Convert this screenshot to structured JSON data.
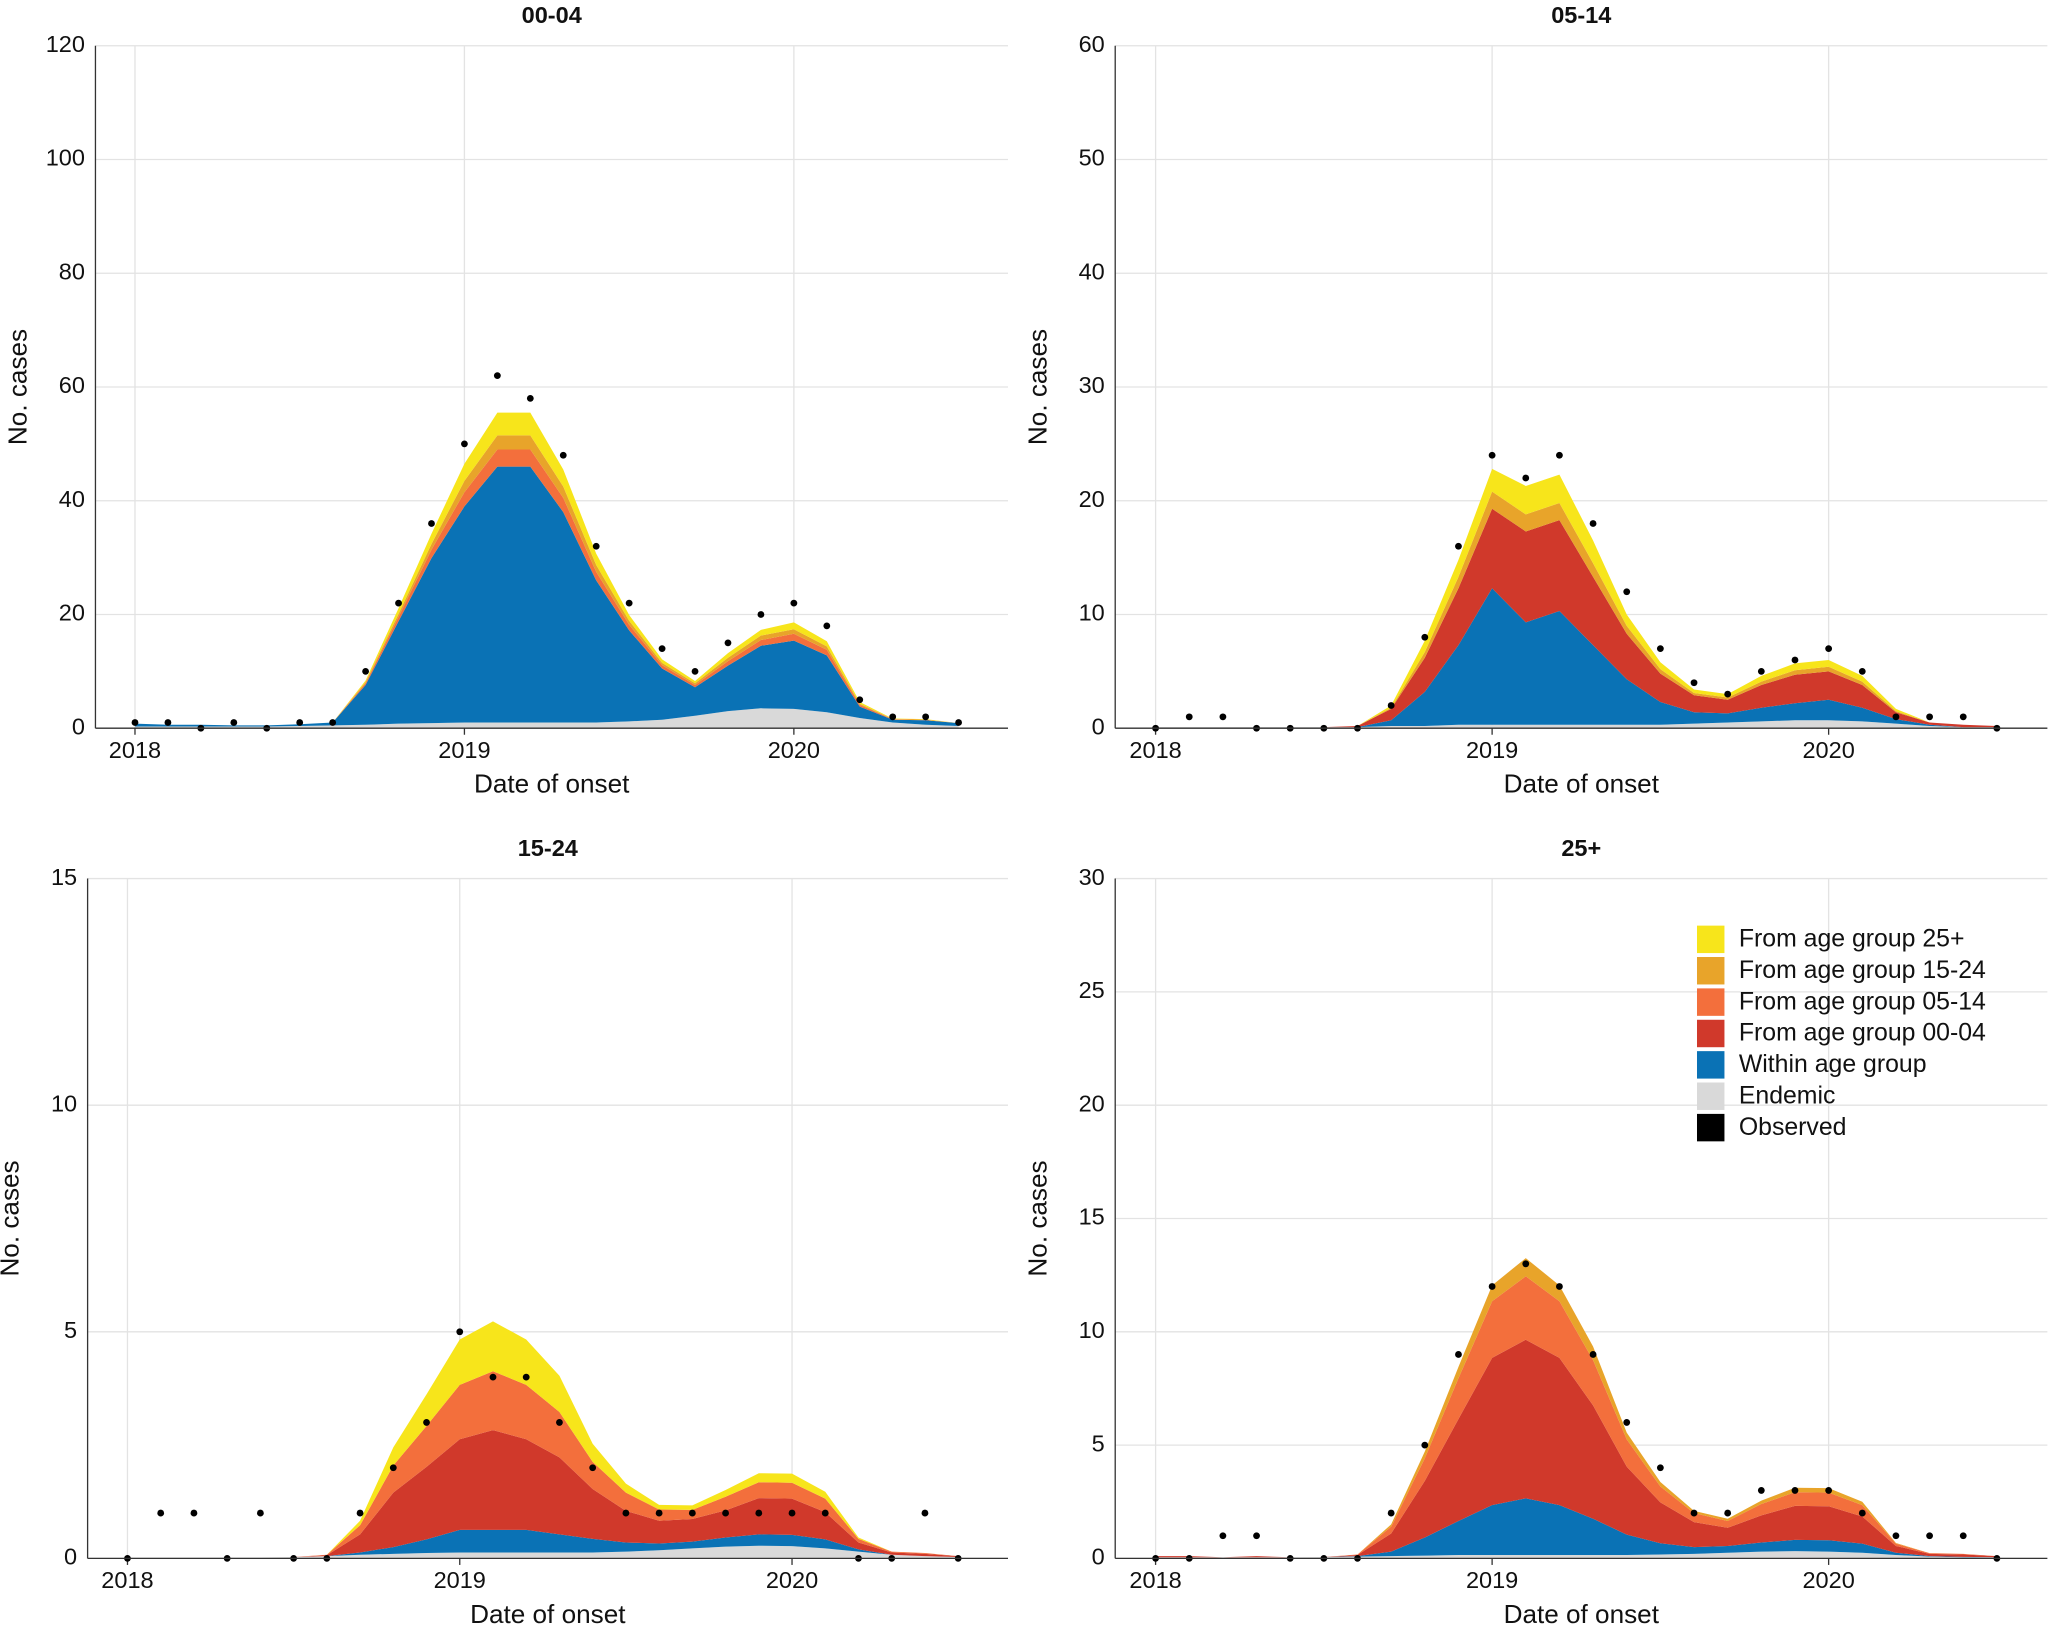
{
  "chart_data": [
    {
      "type": "area",
      "title": "00-04",
      "xlabel": "Date of onset",
      "ylabel": "No. cases",
      "x": [
        2018,
        2018.1,
        2018.2,
        2018.3,
        2018.4,
        2018.5,
        2018.6,
        2018.7,
        2018.8,
        2018.9,
        2019,
        2019.1,
        2019.2,
        2019.3,
        2019.4,
        2019.5,
        2019.6,
        2019.7,
        2019.8,
        2019.9,
        2020,
        2020.1,
        2020.2,
        2020.3,
        2020.4,
        2020.5
      ],
      "xlim": [
        2017.88,
        2020.65
      ],
      "xticks": [
        2018,
        2019,
        2020
      ],
      "ylim": [
        0,
        120
      ],
      "yticks": [
        0,
        20,
        40,
        60,
        80,
        100,
        120
      ],
      "grid": true,
      "series": [
        {
          "color": "#d9d9d9",
          "values": [
            0.3,
            0.3,
            0.3,
            0.3,
            0.3,
            0.4,
            0.5,
            0.6,
            0.8,
            0.9,
            1,
            1,
            1,
            1,
            1,
            1.2,
            1.5,
            2.2,
            3,
            3.5,
            3.4,
            2.8,
            1.8,
            1,
            0.6,
            0.4
          ]
        },
        {
          "color": "#0a72b5",
          "values": [
            0.5,
            0.3,
            0.3,
            0.2,
            0.2,
            0.3,
            0.5,
            7,
            18,
            29,
            38,
            45,
            45,
            37,
            25,
            16,
            9,
            5,
            8,
            11,
            12,
            10,
            2,
            0.5,
            0.8,
            0.5
          ]
        },
        {
          "color": "#d0392b",
          "values": [
            0,
            0,
            0,
            0,
            0,
            0,
            0,
            0,
            0,
            0,
            0,
            0,
            0,
            0,
            0,
            0,
            0,
            0,
            0,
            0,
            0,
            0,
            0,
            0,
            0,
            0
          ]
        },
        {
          "color": "#f36f3c",
          "values": [
            0,
            0,
            0,
            0,
            0,
            0,
            0,
            0.3,
            0.8,
            1.5,
            2.5,
            3,
            3,
            2.5,
            1.5,
            1,
            0.6,
            0.4,
            0.8,
            1,
            1.2,
            1,
            0.3,
            0.1,
            0.1,
            0
          ]
        },
        {
          "color": "#e8a42a",
          "values": [
            0,
            0,
            0,
            0,
            0,
            0,
            0,
            0.2,
            0.5,
            1,
            2,
            2.5,
            2.5,
            2,
            1.2,
            0.7,
            0.4,
            0.3,
            0.6,
            0.8,
            0.8,
            0.6,
            0.2,
            0,
            0,
            0
          ]
        },
        {
          "color": "#f7e51b",
          "values": [
            0,
            0,
            0,
            0,
            0,
            0,
            0,
            0.3,
            1,
            1.8,
            3,
            4,
            4,
            3,
            2,
            1,
            0.6,
            0.4,
            0.8,
            1,
            1.2,
            0.9,
            0.3,
            0.1,
            0.1,
            0
          ]
        },
        {
          "color": "#000000",
          "style": "points",
          "values": [
            1,
            1,
            0,
            1,
            0,
            1,
            1,
            10,
            22,
            36,
            50,
            62,
            58,
            48,
            32,
            22,
            14,
            10,
            15,
            20,
            22,
            18,
            5,
            2,
            2,
            1
          ]
        }
      ]
    },
    {
      "type": "area",
      "title": "05-14",
      "xlabel": "Date of onset",
      "ylabel": "No. cases",
      "x": [
        2018,
        2018.1,
        2018.2,
        2018.3,
        2018.4,
        2018.5,
        2018.6,
        2018.7,
        2018.8,
        2018.9,
        2019,
        2019.1,
        2019.2,
        2019.3,
        2019.4,
        2019.5,
        2019.6,
        2019.7,
        2019.8,
        2019.9,
        2020,
        2020.1,
        2020.2,
        2020.3,
        2020.4,
        2020.5
      ],
      "xlim": [
        2017.88,
        2020.65
      ],
      "xticks": [
        2018,
        2019,
        2020
      ],
      "ylim": [
        0,
        60
      ],
      "yticks": [
        0,
        10,
        20,
        30,
        40,
        50,
        60
      ],
      "grid": true,
      "series": [
        {
          "color": "#d9d9d9",
          "values": [
            0.1,
            0.1,
            0.1,
            0.1,
            0.1,
            0.1,
            0.1,
            0.2,
            0.2,
            0.3,
            0.3,
            0.3,
            0.3,
            0.3,
            0.3,
            0.3,
            0.4,
            0.5,
            0.6,
            0.7,
            0.7,
            0.6,
            0.4,
            0.2,
            0.1,
            0.1
          ]
        },
        {
          "color": "#0a72b5",
          "values": [
            0,
            0,
            0,
            0,
            0,
            0,
            0,
            0.5,
            3,
            7,
            12,
            9,
            10,
            7,
            4,
            2,
            1,
            0.8,
            1.2,
            1.5,
            1.8,
            1.2,
            0.4,
            0.1,
            0,
            0
          ]
        },
        {
          "color": "#d0392b",
          "values": [
            0,
            0,
            0,
            0,
            0,
            0,
            0.1,
            1,
            3,
            5,
            7,
            8,
            8,
            6,
            4,
            2.5,
            1.5,
            1.2,
            2,
            2.5,
            2.5,
            2,
            0.6,
            0.2,
            0.2,
            0.1
          ]
        },
        {
          "color": "#f36f3c",
          "values": [
            0,
            0,
            0,
            0,
            0,
            0,
            0,
            0,
            0,
            0,
            0,
            0,
            0,
            0,
            0,
            0,
            0,
            0,
            0,
            0,
            0,
            0,
            0,
            0,
            0,
            0
          ]
        },
        {
          "color": "#e8a42a",
          "values": [
            0,
            0,
            0,
            0,
            0,
            0,
            0,
            0.1,
            0.5,
            1,
            1.5,
            1.5,
            1.5,
            1.2,
            0.7,
            0.4,
            0.2,
            0.2,
            0.3,
            0.4,
            0.4,
            0.3,
            0.1,
            0,
            0,
            0
          ]
        },
        {
          "color": "#f7e51b",
          "values": [
            0,
            0,
            0,
            0,
            0,
            0,
            0,
            0.2,
            1,
            1.5,
            2,
            2.5,
            2.5,
            2,
            1,
            0.6,
            0.3,
            0.3,
            0.5,
            0.6,
            0.6,
            0.5,
            0.2,
            0,
            0,
            0
          ]
        },
        {
          "color": "#000000",
          "style": "points",
          "values": [
            0,
            1,
            1,
            0,
            0,
            0,
            0,
            2,
            8,
            16,
            24,
            22,
            24,
            18,
            12,
            7,
            4,
            3,
            5,
            6,
            7,
            5,
            1,
            1,
            1,
            0
          ]
        }
      ]
    },
    {
      "type": "area",
      "title": "15-24",
      "xlabel": "Date of onset",
      "ylabel": "No. cases",
      "x": [
        2018,
        2018.1,
        2018.2,
        2018.3,
        2018.4,
        2018.5,
        2018.6,
        2018.7,
        2018.8,
        2018.9,
        2019,
        2019.1,
        2019.2,
        2019.3,
        2019.4,
        2019.5,
        2019.6,
        2019.7,
        2019.8,
        2019.9,
        2020,
        2020.1,
        2020.2,
        2020.3,
        2020.4,
        2020.5
      ],
      "xlim": [
        2017.88,
        2020.65
      ],
      "xticks": [
        2018,
        2019,
        2020
      ],
      "ylim": [
        0,
        15
      ],
      "yticks": [
        0,
        5,
        10,
        15
      ],
      "grid": true,
      "series": [
        {
          "color": "#d9d9d9",
          "values": [
            0.02,
            0.02,
            0.02,
            0.02,
            0.02,
            0.03,
            0.05,
            0.08,
            0.1,
            0.12,
            0.13,
            0.13,
            0.13,
            0.13,
            0.13,
            0.15,
            0.18,
            0.22,
            0.26,
            0.28,
            0.27,
            0.22,
            0.15,
            0.08,
            0.05,
            0.03
          ]
        },
        {
          "color": "#0a72b5",
          "values": [
            0,
            0,
            0,
            0,
            0,
            0,
            0,
            0.05,
            0.15,
            0.3,
            0.5,
            0.5,
            0.5,
            0.4,
            0.3,
            0.2,
            0.15,
            0.15,
            0.2,
            0.25,
            0.25,
            0.2,
            0.05,
            0,
            0,
            0
          ]
        },
        {
          "color": "#d0392b",
          "values": [
            0,
            0,
            0,
            0,
            0,
            0,
            0.02,
            0.4,
            1.2,
            1.6,
            2,
            2.2,
            2,
            1.7,
            1.1,
            0.7,
            0.5,
            0.5,
            0.6,
            0.8,
            0.8,
            0.6,
            0.15,
            0.05,
            0.05,
            0.02
          ]
        },
        {
          "color": "#f36f3c",
          "values": [
            0,
            0,
            0,
            0,
            0,
            0,
            0.01,
            0.2,
            0.6,
            0.9,
            1.2,
            1.3,
            1.2,
            1,
            0.6,
            0.4,
            0.25,
            0.2,
            0.3,
            0.35,
            0.35,
            0.3,
            0.08,
            0.02,
            0.02,
            0
          ]
        },
        {
          "color": "#e8a42a",
          "values": [
            0,
            0,
            0,
            0,
            0,
            0,
            0,
            0,
            0,
            0,
            0,
            0,
            0,
            0,
            0,
            0,
            0,
            0,
            0,
            0,
            0,
            0,
            0,
            0,
            0,
            0
          ]
        },
        {
          "color": "#f7e51b",
          "values": [
            0,
            0,
            0,
            0,
            0,
            0,
            0,
            0.1,
            0.4,
            0.7,
            1,
            1.1,
            1,
            0.8,
            0.4,
            0.2,
            0.1,
            0.1,
            0.15,
            0.2,
            0.2,
            0.15,
            0.03,
            0,
            0,
            0
          ]
        },
        {
          "color": "#000000",
          "style": "points",
          "values": [
            0,
            1,
            1,
            0,
            1,
            0,
            0,
            1,
            2,
            3,
            5,
            4,
            4,
            3,
            2,
            1,
            1,
            1,
            1,
            1,
            1,
            1,
            0,
            0,
            1,
            0
          ]
        }
      ]
    },
    {
      "type": "area",
      "title": "25+",
      "xlabel": "Date of onset",
      "ylabel": "No. cases",
      "legend": "upper right",
      "x": [
        2018,
        2018.1,
        2018.2,
        2018.3,
        2018.4,
        2018.5,
        2018.6,
        2018.7,
        2018.8,
        2018.9,
        2019,
        2019.1,
        2019.2,
        2019.3,
        2019.4,
        2019.5,
        2019.6,
        2019.7,
        2019.8,
        2019.9,
        2020,
        2020.1,
        2020.2,
        2020.3,
        2020.4,
        2020.5
      ],
      "xlim": [
        2017.88,
        2020.65
      ],
      "xticks": [
        2018,
        2019,
        2020
      ],
      "ylim": [
        0,
        30
      ],
      "yticks": [
        0,
        5,
        10,
        15,
        20,
        25,
        30
      ],
      "grid": true,
      "series": [
        {
          "name": "Endemic",
          "color": "#d9d9d9",
          "values": [
            0.05,
            0.05,
            0.05,
            0.05,
            0.05,
            0.06,
            0.08,
            0.1,
            0.12,
            0.15,
            0.15,
            0.15,
            0.15,
            0.15,
            0.15,
            0.17,
            0.2,
            0.25,
            0.3,
            0.32,
            0.3,
            0.25,
            0.15,
            0.08,
            0.05,
            0.05
          ]
        },
        {
          "name": "Within age group",
          "color": "#0a72b5",
          "values": [
            0,
            0,
            0,
            0,
            0,
            0,
            0.02,
            0.2,
            0.8,
            1.5,
            2.2,
            2.5,
            2.2,
            1.6,
            0.9,
            0.5,
            0.3,
            0.3,
            0.4,
            0.5,
            0.5,
            0.4,
            0.1,
            0.02,
            0.02,
            0
          ]
        },
        {
          "name": "From age group 00-04",
          "color": "#d0392b",
          "values": [
            0.05,
            0.05,
            0,
            0.05,
            0,
            0,
            0.05,
            0.8,
            2.5,
            4.5,
            6.5,
            7,
            6.5,
            5,
            3,
            1.8,
            1.1,
            0.8,
            1.2,
            1.5,
            1.5,
            1.2,
            0.3,
            0.1,
            0.1,
            0.05
          ]
        },
        {
          "name": "From age group 05-14",
          "color": "#f36f3c",
          "values": [
            0,
            0,
            0,
            0,
            0,
            0,
            0.02,
            0.3,
            1,
            1.8,
            2.5,
            2.8,
            2.5,
            2,
            1.2,
            0.7,
            0.4,
            0.3,
            0.5,
            0.6,
            0.6,
            0.5,
            0.1,
            0.03,
            0.03,
            0
          ]
        },
        {
          "name": "From age group 15-24",
          "color": "#e8a42a",
          "values": [
            0,
            0,
            0,
            0,
            0,
            0,
            0,
            0.1,
            0.3,
            0.5,
            0.7,
            0.8,
            0.7,
            0.6,
            0.3,
            0.2,
            0.1,
            0.1,
            0.15,
            0.2,
            0.2,
            0.15,
            0.03,
            0,
            0,
            0
          ]
        },
        {
          "name": "From age group 25+",
          "color": "#f7e51b",
          "values": [
            0,
            0,
            0,
            0,
            0,
            0,
            0,
            0,
            0,
            0,
            0,
            0,
            0,
            0,
            0,
            0,
            0,
            0,
            0,
            0,
            0,
            0,
            0,
            0,
            0,
            0
          ]
        },
        {
          "name": "Observed",
          "color": "#000000",
          "style": "points",
          "values": [
            0,
            0,
            1,
            1,
            0,
            0,
            0,
            2,
            5,
            9,
            12,
            13,
            12,
            9,
            6,
            4,
            2,
            2,
            3,
            3,
            3,
            2,
            1,
            1,
            1,
            0
          ]
        }
      ]
    }
  ]
}
